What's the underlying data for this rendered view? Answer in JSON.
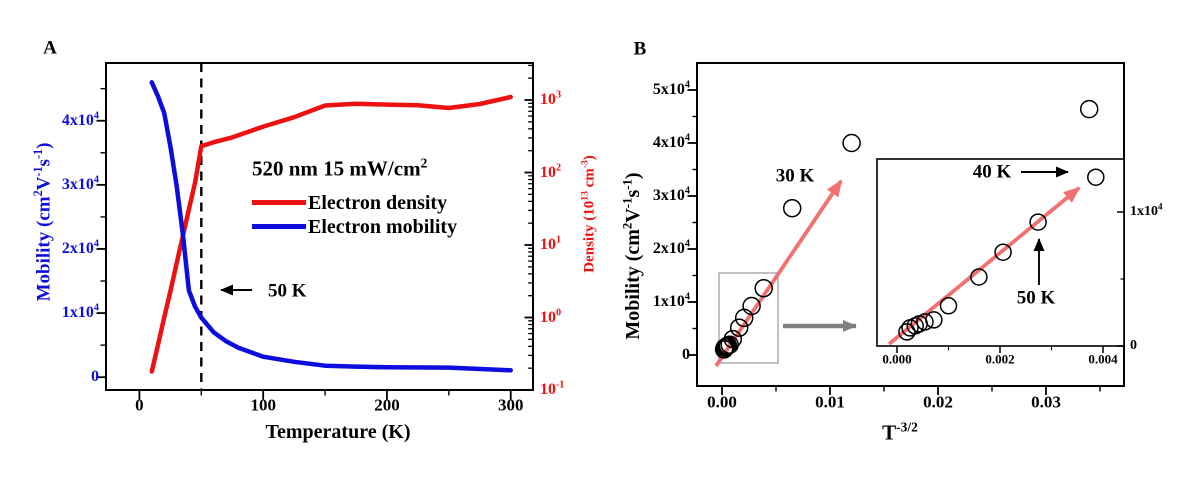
{
  "colors": {
    "blue": "#0d0ddd",
    "red": "#ee1111",
    "arrow_red": "#f37070",
    "grey_box": "#ababab",
    "grey_arrow": "#7f7f7f",
    "black": "#000000"
  },
  "panel_a": {
    "panel_label": "A",
    "annotation": "520 nm 15 mW/cm^{2}",
    "x_axis": {
      "label": "Temperature (K)",
      "ticks": [
        {
          "v": 0,
          "t": "0"
        },
        {
          "v": 100,
          "t": "100"
        },
        {
          "v": 200,
          "t": "200"
        },
        {
          "v": 300,
          "t": "300"
        }
      ],
      "minor_ticks": [
        50,
        150,
        250
      ]
    },
    "y_left": {
      "label": "Mobility (cm^{2}V^{-1}s^{-1})",
      "ticks": [
        {
          "v": 0,
          "t": "0"
        },
        {
          "v": 10000,
          "t": "1x10^{4}"
        },
        {
          "v": 20000,
          "t": "2x10^{4}"
        },
        {
          "v": 30000,
          "t": "3x10^{4}"
        },
        {
          "v": 40000,
          "t": "4x10^{4}"
        }
      ],
      "minor_ticks": [
        5000,
        15000,
        25000,
        35000,
        45000
      ]
    },
    "y_right": {
      "label": "Density (10^{13} cm^{-3})",
      "scale": "log",
      "ticks": [
        {
          "v": 0.1,
          "t": "10^{-1}"
        },
        {
          "v": 1,
          "t": "10^{0}"
        },
        {
          "v": 10,
          "t": "10^{1}"
        },
        {
          "v": 100,
          "t": "10^{2}"
        },
        {
          "v": 1000,
          "t": "10^{3}"
        }
      ]
    },
    "legend": [
      {
        "label": "Electron density",
        "color_key": "red"
      },
      {
        "label": "Electron mobility",
        "color_key": "blue"
      }
    ],
    "dashed_marker": {
      "x": 50,
      "label": "50 K"
    }
  },
  "panel_b": {
    "panel_label": "B",
    "x_axis": {
      "label": "T^{-3/2}",
      "ticks": [
        {
          "v": 0,
          "t": "0.00"
        },
        {
          "v": 0.01,
          "t": "0.01"
        },
        {
          "v": 0.02,
          "t": "0.02"
        },
        {
          "v": 0.03,
          "t": "0.03"
        }
      ],
      "minor_ticks": [
        0.005,
        0.015,
        0.025,
        0.035
      ]
    },
    "y_left": {
      "label": "Mobility (cm^{2}V^{-1}s^{-1})",
      "ticks": [
        {
          "v": 0,
          "t": "0"
        },
        {
          "v": 10000,
          "t": "1x10^{4}"
        },
        {
          "v": 20000,
          "t": "2x10^{4}"
        },
        {
          "v": 30000,
          "t": "3x10^{4}"
        },
        {
          "v": 40000,
          "t": "4x10^{4}"
        },
        {
          "v": 50000,
          "t": "5x10^{4}"
        }
      ],
      "minor_ticks": [
        5000,
        15000,
        25000,
        35000,
        45000
      ]
    },
    "annotations": {
      "a30": "30 K",
      "a40": "40 K",
      "a50": "50 K"
    },
    "inset": {
      "x_axis": {
        "ticks": [
          {
            "v": 0,
            "t": "0.000"
          },
          {
            "v": 0.002,
            "t": "0.002"
          },
          {
            "v": 0.004,
            "t": "0.004"
          }
        ],
        "minor_ticks": [
          0.001,
          0.003
        ]
      },
      "y_right": {
        "ticks": [
          {
            "v": 0,
            "t": "0"
          },
          {
            "v": 10000,
            "t": "1x10^{4}"
          }
        ],
        "minor_ticks": [
          5000
        ]
      }
    }
  },
  "chart_data": [
    {
      "id": "panel_a",
      "type": "line",
      "annotation": "520 nm 15 mW/cm^2",
      "xlabel": "Temperature (K)",
      "xlim": [
        -27,
        318
      ],
      "x_ticks": [
        0,
        100,
        200,
        300
      ],
      "ylabel_left": "Mobility (cm^2 V^-1 s^-1)",
      "ylim_left": [
        -2000,
        49000
      ],
      "ylabel_right": "Density (10^13 cm^-3)",
      "yscale_right": "log",
      "ylim_right": [
        0.1,
        1000
      ],
      "vline_K": 50,
      "legend_position": "center",
      "series": [
        {
          "name": "Electron mobility",
          "axis": "left",
          "color_key": "blue",
          "points": [
            [
              10,
              46000
            ],
            [
              15,
              43800
            ],
            [
              20,
              41200
            ],
            [
              25,
              36000
            ],
            [
              30,
              30000
            ],
            [
              35,
              22500
            ],
            [
              40,
              13500
            ],
            [
              45,
              11000
            ],
            [
              50,
              9300
            ],
            [
              60,
              7000
            ],
            [
              70,
              5600
            ],
            [
              80,
              4600
            ],
            [
              100,
              3200
            ],
            [
              125,
              2400
            ],
            [
              150,
              1800
            ],
            [
              175,
              1650
            ],
            [
              200,
              1550
            ],
            [
              250,
              1500
            ],
            [
              300,
              1080
            ]
          ]
        },
        {
          "name": "Electron density",
          "axis": "right",
          "color_key": "red",
          "points": [
            [
              10,
              0.18
            ],
            [
              15,
              0.42
            ],
            [
              20,
              1.0
            ],
            [
              25,
              2.3
            ],
            [
              30,
              5.5
            ],
            [
              35,
              13
            ],
            [
              40,
              31
            ],
            [
              45,
              73
            ],
            [
              50,
              230
            ],
            [
              60,
              262
            ],
            [
              75,
              305
            ],
            [
              100,
              430
            ],
            [
              125,
              580
            ],
            [
              150,
              840
            ],
            [
              175,
              890
            ],
            [
              200,
              865
            ],
            [
              225,
              845
            ],
            [
              250,
              775
            ],
            [
              275,
              880
            ],
            [
              300,
              1100
            ]
          ]
        }
      ]
    },
    {
      "id": "panel_b",
      "type": "scatter",
      "xlabel": "T^-3/2",
      "xlim": [
        -0.0023,
        0.0372
      ],
      "x_ticks": [
        0,
        0.01,
        0.02,
        0.03
      ],
      "ylabel": "Mobility (cm^2 V^-1 s^-1)",
      "ylim": [
        -5900,
        55100
      ],
      "series": [
        {
          "name": "Electron mobility vs T^-3/2",
          "marker": "open-circle",
          "color_key": "black",
          "temperatures_K": [
            300,
            250,
            200,
            175,
            150,
            125,
            100,
            70,
            60,
            50,
            40,
            30,
            20,
            10
          ],
          "points": [
            [
              0.000192,
              1050
            ],
            [
              0.000253,
              1350
            ],
            [
              0.000354,
              1500
            ],
            [
              0.000432,
              1650
            ],
            [
              0.000544,
              1800
            ],
            [
              0.000716,
              1950
            ],
            [
              0.001,
              3000
            ],
            [
              0.00159,
              5150
            ],
            [
              0.00206,
              7000
            ],
            [
              0.00274,
              9250
            ],
            [
              0.00386,
              12600
            ],
            [
              0.0065,
              27700
            ],
            [
              0.012,
              40000
            ],
            [
              0.034,
              46400
            ]
          ]
        }
      ],
      "fit_arrow": {
        "color_key": "arrow_red"
      },
      "inset": {
        "xlim": [
          -0.0004,
          0.0044
        ],
        "x_ticks": [
          0,
          0.002,
          0.004
        ],
        "ylim": [
          0,
          14000
        ],
        "y_ticks": [
          0,
          10000
        ],
        "labeled_points_K": [
          40,
          50
        ]
      }
    }
  ]
}
